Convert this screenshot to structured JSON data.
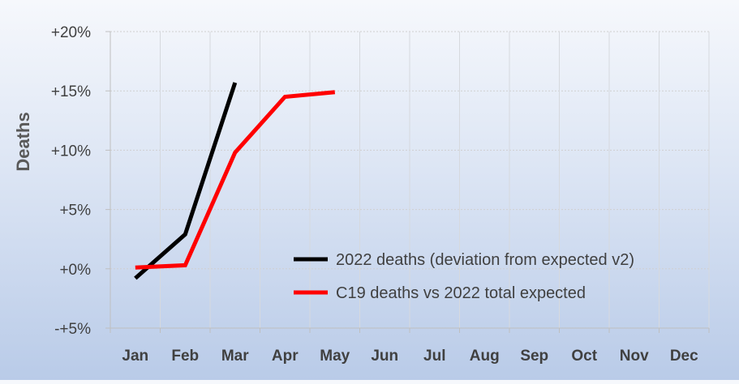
{
  "chart_data": {
    "type": "line",
    "title": "",
    "xlabel": "",
    "ylabel": "Deaths",
    "categories": [
      "Jan",
      "Feb",
      "Mar",
      "Apr",
      "May",
      "Jun",
      "Jul",
      "Aug",
      "Sep",
      "Oct",
      "Nov",
      "Dec"
    ],
    "y_ticks": [
      "+20%",
      "+15%",
      "+10%",
      "+5%",
      "+0%",
      "-+5%"
    ],
    "ylim": [
      -5,
      20
    ],
    "y_tick_values": [
      20,
      15,
      10,
      5,
      0,
      -5
    ],
    "grid": true,
    "legend_position": "bottom-right",
    "series": [
      {
        "name": "2022 deaths (deviation from expected v2)",
        "color": "#000000",
        "values": [
          -0.8,
          2.9,
          15.7,
          null,
          null,
          null,
          null,
          null,
          null,
          null,
          null,
          null
        ]
      },
      {
        "name": "C19 deaths vs 2022 total expected",
        "color": "#ff0000",
        "values": [
          0.1,
          0.3,
          9.8,
          14.5,
          14.9,
          null,
          null,
          null,
          null,
          null,
          null,
          null
        ]
      }
    ]
  }
}
